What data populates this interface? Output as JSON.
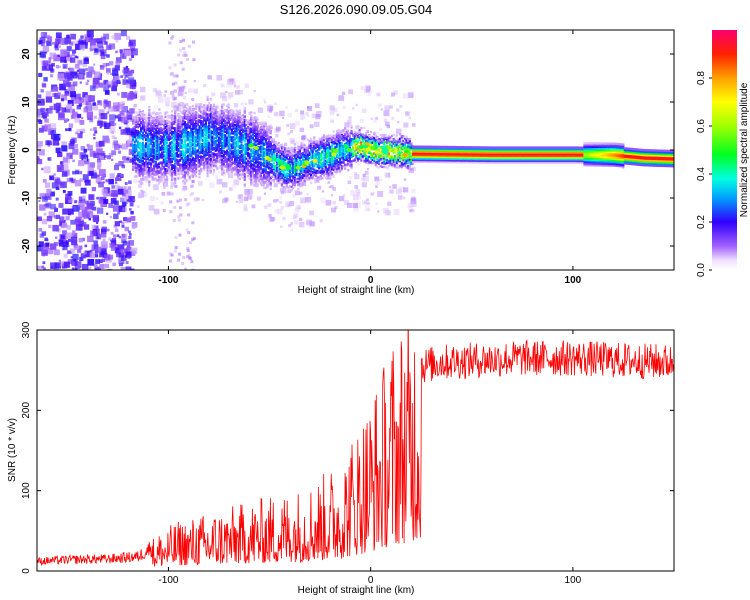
{
  "title": "S126.2026.090.09.05.G04",
  "chart_data": [
    {
      "type": "heatmap",
      "xlabel": "Height of straight line (km)",
      "ylabel": "Frequency (Hz)",
      "xlim": [
        -165,
        150
      ],
      "ylim": [
        -25,
        25
      ],
      "xticks": [
        -100,
        0,
        100
      ],
      "xtick_labels": [
        "-100",
        "0",
        "100"
      ],
      "yticks": [
        -20,
        -10,
        0,
        10,
        20
      ],
      "ytick_labels": [
        "-20",
        "-10",
        "0",
        "10",
        "20"
      ],
      "ridge": {
        "x": [
          -115,
          -100,
          -90,
          -80,
          -70,
          -60,
          -50,
          -45,
          -40,
          -35,
          -30,
          -25,
          -20,
          -15,
          -10,
          -5,
          0,
          5,
          10,
          15,
          20,
          40,
          60,
          80,
          100,
          120,
          135,
          150
        ],
        "y": [
          1.0,
          0.5,
          1.5,
          3.0,
          2.0,
          0.5,
          -1.5,
          -3.0,
          -4.0,
          -3.0,
          -2.0,
          -1.5,
          -1.0,
          0.0,
          0.5,
          1.0,
          0.3,
          -0.2,
          -0.2,
          -0.3,
          -0.7,
          -0.8,
          -0.9,
          -0.9,
          -0.9,
          -1.0,
          -1.6,
          -1.8
        ]
      },
      "colorbar": {
        "label": "Normalized spectral amplitude",
        "range": [
          0,
          1
        ],
        "ticks": [
          0.0,
          0.2,
          0.4,
          0.6,
          0.8
        ],
        "tick_labels": [
          "0.0",
          "0.2",
          "0.4",
          "0.6",
          "0.8"
        ]
      }
    },
    {
      "type": "line",
      "color": "#ff0000",
      "xlabel": "Height of straight line (km)",
      "ylabel": "SNR (10 * v/v)",
      "xlim": [
        -165,
        150
      ],
      "ylim": [
        0,
        300
      ],
      "xticks": [
        -100,
        0,
        100
      ],
      "xtick_labels": [
        "-100",
        "0",
        "100"
      ],
      "yticks": [
        0,
        100,
        200,
        300
      ],
      "ytick_labels": [
        "0",
        "100",
        "200",
        "300"
      ],
      "series": [
        {
          "name": "SNR",
          "x": [
            -165,
            -150,
            -130,
            -115,
            -105,
            -95,
            -85,
            -75,
            -65,
            -55,
            -45,
            -35,
            -25,
            -15,
            -10,
            -5,
            0,
            5,
            10,
            15,
            20,
            25,
            35,
            50,
            75,
            100,
            125,
            150
          ],
          "y": [
            12,
            14,
            15,
            18,
            35,
            45,
            50,
            55,
            60,
            65,
            70,
            75,
            85,
            100,
            120,
            140,
            160,
            180,
            210,
            225,
            245,
            255,
            260,
            262,
            265,
            265,
            262,
            260
          ]
        }
      ]
    }
  ]
}
